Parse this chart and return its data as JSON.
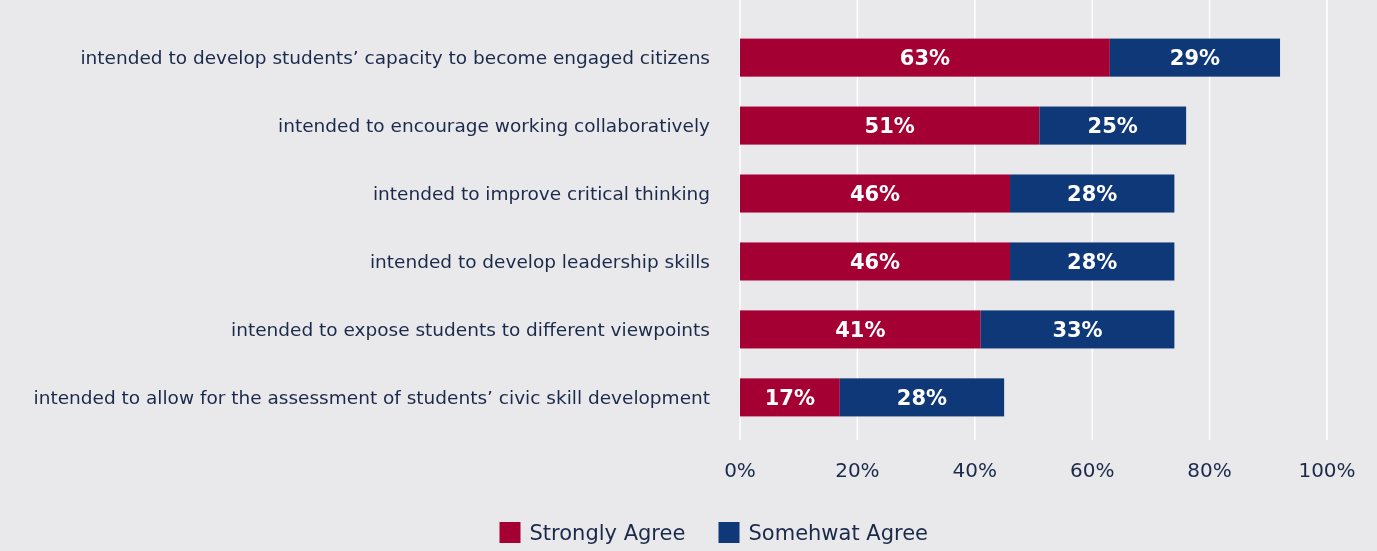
{
  "chart_data": {
    "type": "bar",
    "orientation": "horizontal",
    "stacked": true,
    "categories": [
      "intended to develop students’ capacity to become engaged citizens",
      "intended to encourage working collaboratively",
      "intended to improve critical thinking",
      "intended to develop leadership skills",
      "intended to expose students to different viewpoints",
      "intended to allow for the assessment of students’ civic skill development"
    ],
    "series": [
      {
        "name": "Strongly Agree",
        "color": "#a50034",
        "values": [
          63,
          51,
          46,
          46,
          41,
          17
        ],
        "value_labels": [
          "63%",
          "51%",
          "46%",
          "46%",
          "41%",
          "17%"
        ]
      },
      {
        "name": "Somehwat Agree",
        "color": "#0e3877",
        "values": [
          29,
          25,
          28,
          28,
          33,
          28
        ],
        "value_labels": [
          "29%",
          "25%",
          "28%",
          "28%",
          "33%",
          "28%"
        ]
      }
    ],
    "xlim": [
      0,
      100
    ],
    "xticks": [
      {
        "value": 0,
        "label": "0%"
      },
      {
        "value": 20,
        "label": "20%"
      },
      {
        "value": 40,
        "label": "40%"
      },
      {
        "value": 60,
        "label": "60%"
      },
      {
        "value": 80,
        "label": "80%"
      },
      {
        "value": 100,
        "label": "100%"
      }
    ],
    "grid": "x",
    "legend": "bottom"
  }
}
